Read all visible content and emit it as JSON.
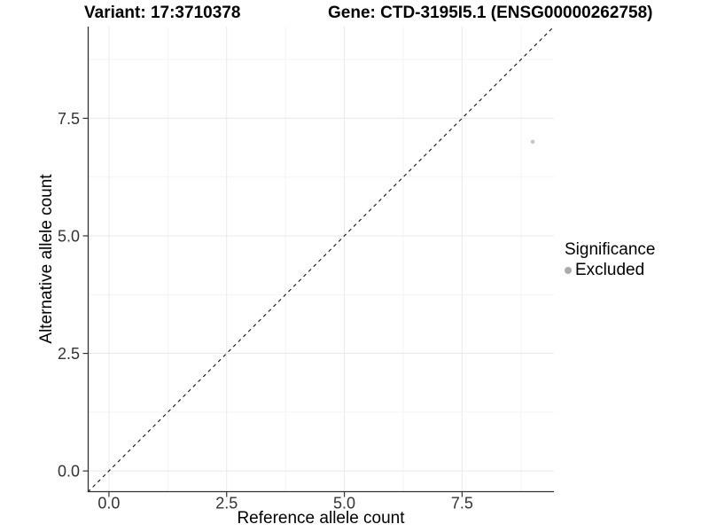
{
  "chart_data": {
    "type": "scatter",
    "title_left": "Variant: 17:3710378",
    "title_right": "Gene: CTD-3195I5.1 (ENSG00000262758)",
    "xlabel": "Reference allele count",
    "ylabel": "Alternative allele count",
    "xlim": [
      -0.45,
      9.45
    ],
    "ylim": [
      -0.45,
      9.45
    ],
    "x_ticks": {
      "values": [
        0,
        2.5,
        5,
        7.5
      ],
      "labels": [
        "0.0",
        "2.5",
        "5.0",
        "7.5"
      ]
    },
    "y_ticks": {
      "values": [
        0,
        2.5,
        5,
        7.5
      ],
      "labels": [
        "0.0",
        "2.5",
        "5.0",
        "7.5"
      ]
    },
    "x_minor": [
      1.25,
      3.75,
      6.25,
      8.75
    ],
    "y_minor": [
      1.25,
      3.75,
      6.25,
      8.75
    ],
    "grid": "major+minor",
    "identity_line": {
      "style": "dashed",
      "slope": 1,
      "intercept": 0,
      "color": "#111111"
    },
    "series": [
      {
        "name": "Excluded",
        "color": "#c6c6c6",
        "point_radius": 2.3,
        "points": [
          {
            "x": 9,
            "y": 7
          }
        ]
      }
    ],
    "legend": {
      "title": "Significance",
      "position": "right",
      "items": [
        {
          "label": "Excluded",
          "color": "#ababab"
        }
      ]
    },
    "colors": {
      "grid_major": "#e8e8e8",
      "grid_minor": "#f4f4f4",
      "axis_line": "#333333",
      "tick_mark": "#333333",
      "tick_label": "#333333",
      "background": "#ffffff"
    }
  }
}
